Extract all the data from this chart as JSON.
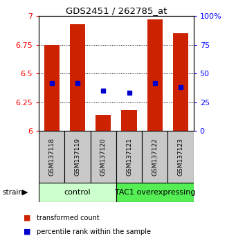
{
  "title": "GDS2451 / 262785_at",
  "samples": [
    "GSM137118",
    "GSM137119",
    "GSM137120",
    "GSM137121",
    "GSM137122",
    "GSM137123"
  ],
  "red_values": [
    6.75,
    6.93,
    6.14,
    6.18,
    6.97,
    6.85
  ],
  "blue_values": [
    6.42,
    6.42,
    6.35,
    6.33,
    6.42,
    6.38
  ],
  "y_min": 6.0,
  "y_max": 7.0,
  "y_ticks": [
    6.0,
    6.25,
    6.5,
    6.75,
    7.0
  ],
  "y_tick_labels": [
    "6",
    "6.25",
    "6.5",
    "6.75",
    "7"
  ],
  "right_y_ticks": [
    0,
    25,
    50,
    75,
    100
  ],
  "right_y_labels": [
    "0",
    "25",
    "50",
    "75",
    "100%"
  ],
  "group_labels": [
    "control",
    "TAC1 overexpressing"
  ],
  "control_color": "#ccffcc",
  "tac1_color": "#55ee55",
  "bar_color": "#cc2200",
  "dot_color": "#0000cc",
  "bar_width": 0.6,
  "strain_label": "strain",
  "legend_red": "transformed count",
  "legend_blue": "percentile rank within the sample",
  "background_color": "#ffffff",
  "label_box_color": "#c8c8c8",
  "grid_color": "#000000",
  "dot_size": 5
}
